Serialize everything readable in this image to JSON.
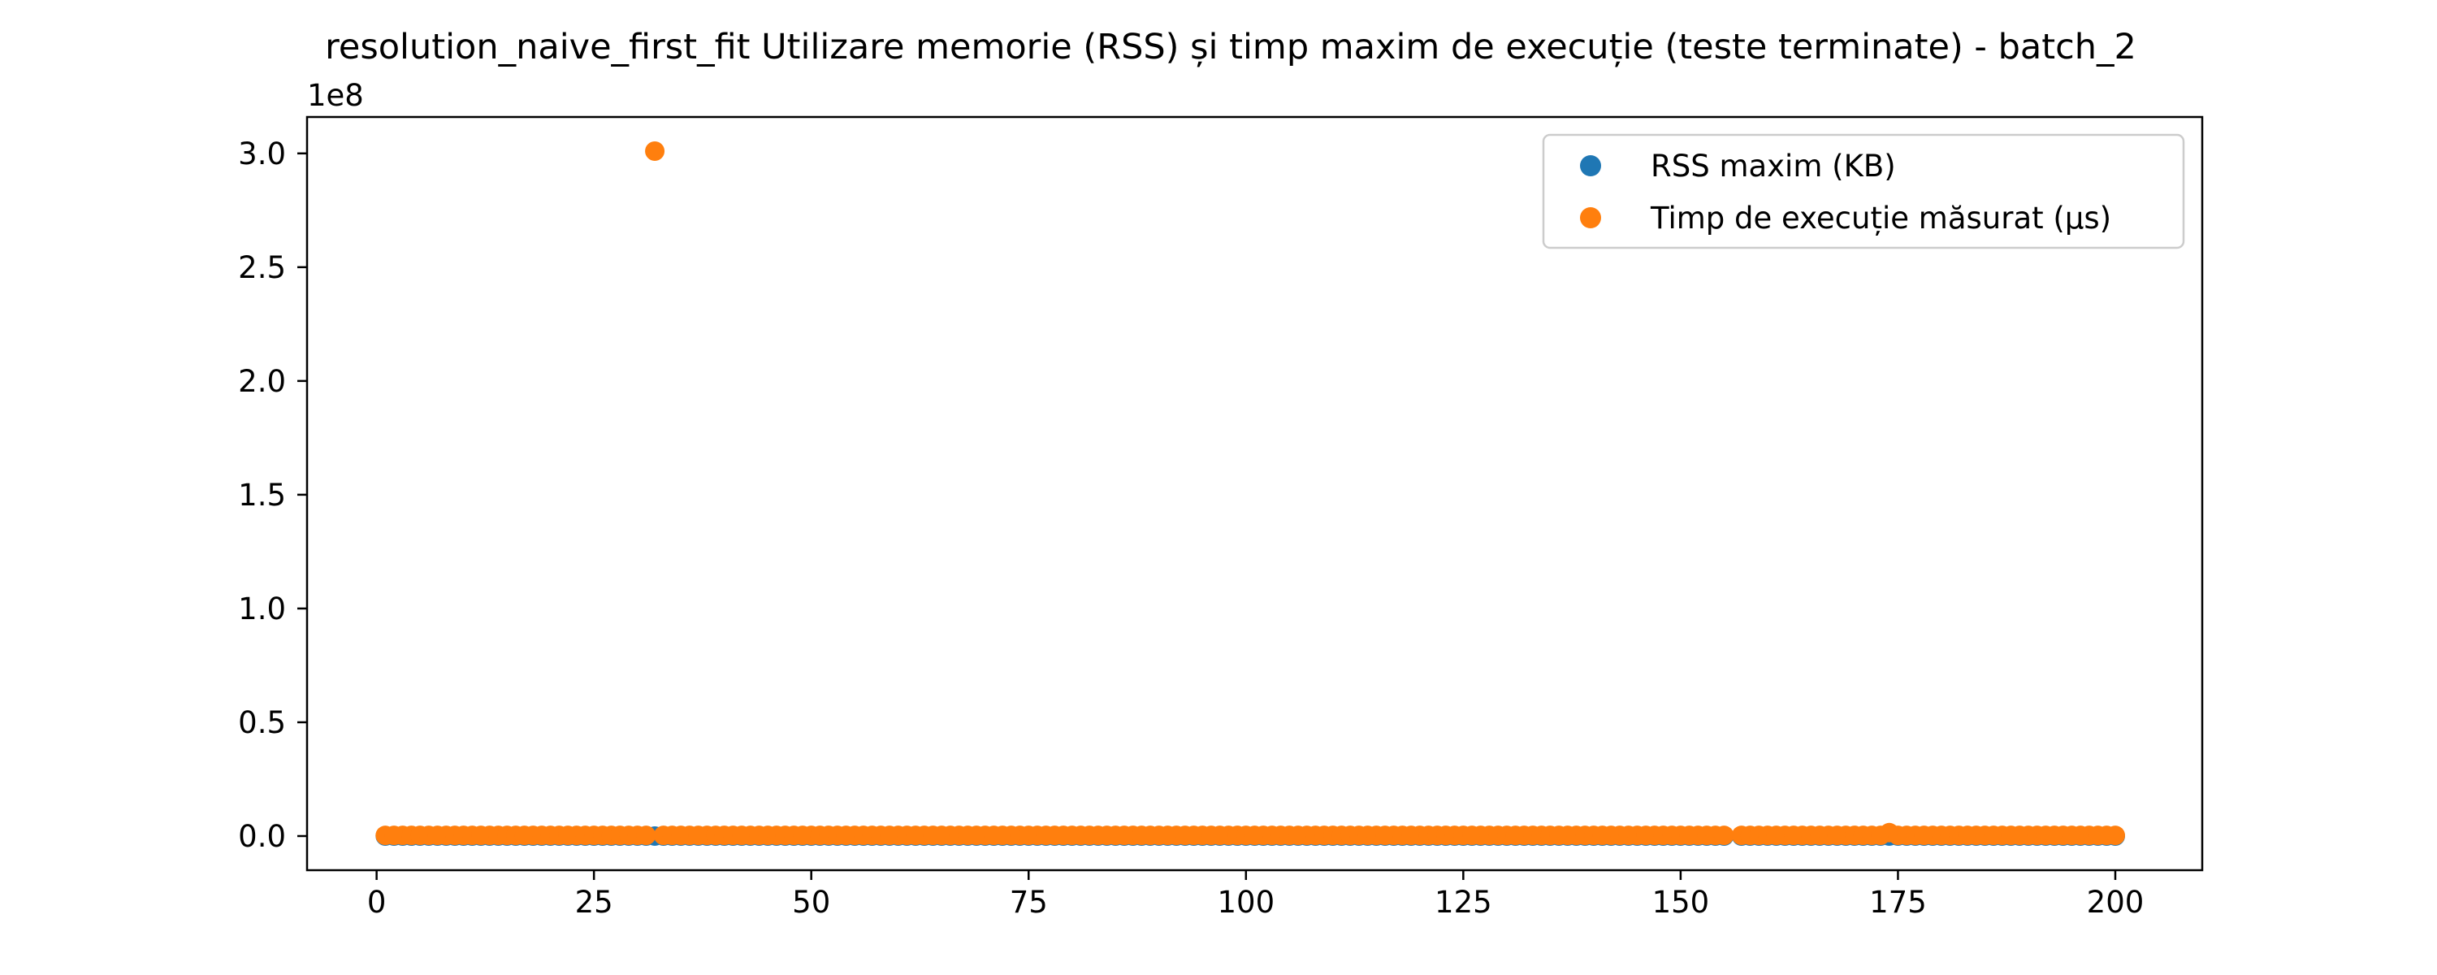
{
  "chart_data": {
    "type": "scatter",
    "title": "resolution_naive_first_fit Utilizare memorie (RSS) și timp maxim de execuție (teste terminate) - batch_2",
    "xlabel": "",
    "ylabel": "",
    "xlim": [
      -8,
      210
    ],
    "ylim": [
      -15000000,
      316000000
    ],
    "y_offset_label": "1e8",
    "x_ticks": [
      0,
      25,
      50,
      75,
      100,
      125,
      150,
      175,
      200
    ],
    "x_tick_labels": [
      "0",
      "25",
      "50",
      "75",
      "100",
      "125",
      "150",
      "175",
      "200"
    ],
    "y_ticks": [
      0,
      50000000,
      100000000,
      150000000,
      200000000,
      250000000,
      300000000
    ],
    "y_tick_labels": [
      "0.0",
      "0.5",
      "1.0",
      "1.5",
      "2.0",
      "2.5",
      "3.0"
    ],
    "grid": false,
    "legend_position": "top-right",
    "missing_x": [
      156
    ],
    "series": [
      {
        "name": "RSS maxim (KB)",
        "color": "#1f77b4",
        "x_range": [
          1,
          200
        ],
        "default_value": 4000,
        "overrides": {}
      },
      {
        "name": "Timp de execuție măsurat (µs)",
        "color": "#ff7f0e",
        "x_range": [
          1,
          200
        ],
        "default_value": 300000,
        "overrides": {
          "32": 301000000,
          "174": 1500000
        }
      }
    ]
  }
}
